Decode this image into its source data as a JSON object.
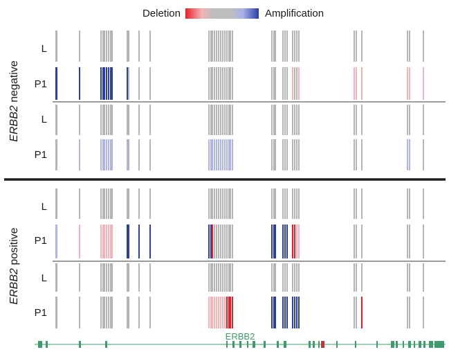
{
  "legend": {
    "left_label": "Deletion",
    "right_label": "Amplification",
    "colors": {
      "deletion": "#e8202a",
      "neutral": "#b4b4b4",
      "amplification": "#2a3fa6"
    }
  },
  "groups": [
    {
      "label_italic": "ERBB2",
      "label_rest": " negative",
      "tracks": [
        {
          "label": "L",
          "sample": "L",
          "coloring": "gray"
        },
        {
          "label": "P1",
          "sample": "P1",
          "coloring": "neg1"
        },
        {
          "label": "L",
          "sample": "L",
          "coloring": "gray"
        },
        {
          "label": "P1",
          "sample": "P1",
          "coloring": "neg2"
        }
      ]
    },
    {
      "label_italic": "ERBB2",
      "label_rest": " positive",
      "tracks": [
        {
          "label": "L",
          "sample": "L",
          "coloring": "gray"
        },
        {
          "label": "P1",
          "sample": "P1",
          "coloring": "pos1"
        },
        {
          "label": "L",
          "sample": "L",
          "coloring": "gray"
        },
        {
          "label": "P1",
          "sample": "P1",
          "coloring": "pos2"
        }
      ]
    }
  ],
  "gene_track": {
    "gene_name": "ERBB2",
    "color": "#3e9b6b"
  }
}
